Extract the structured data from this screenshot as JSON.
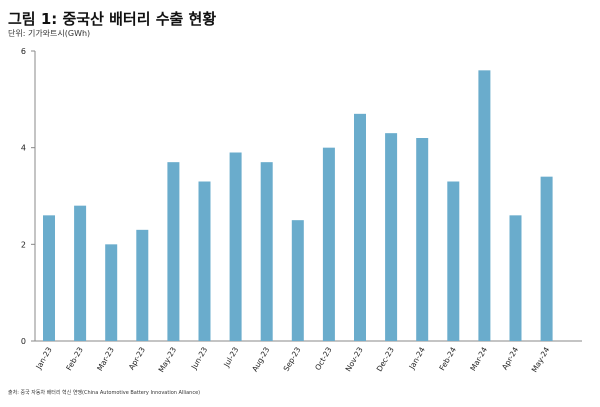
{
  "chart_data": {
    "type": "bar",
    "title": "그림 1: 중국산 배터리 수출 현황",
    "unit_label": "단위: 기가와트시(GWh)",
    "source": "출처: 중국 자동차 배터리 혁신 연맹(China Automotive Battery Innovation Alliance)",
    "categories": [
      "Jan-23",
      "Feb-23",
      "Mar-23",
      "Apr-23",
      "May-23",
      "Jun-23",
      "Jul-23",
      "Aug-23",
      "Sep-23",
      "Oct-23",
      "Nov-23",
      "Dec-23",
      "Jan-24",
      "Feb-24",
      "Mar-24",
      "Apr-24",
      "May-24"
    ],
    "values": [
      2.6,
      2.8,
      2.0,
      2.3,
      3.7,
      3.3,
      3.9,
      3.7,
      2.5,
      4.0,
      4.7,
      4.3,
      4.2,
      3.3,
      5.6,
      2.6,
      3.4
    ],
    "ylim": [
      0,
      6
    ],
    "yticks": [
      "0",
      "2",
      "4",
      "6"
    ],
    "grid": false,
    "bar_color": "#6aaccc"
  }
}
